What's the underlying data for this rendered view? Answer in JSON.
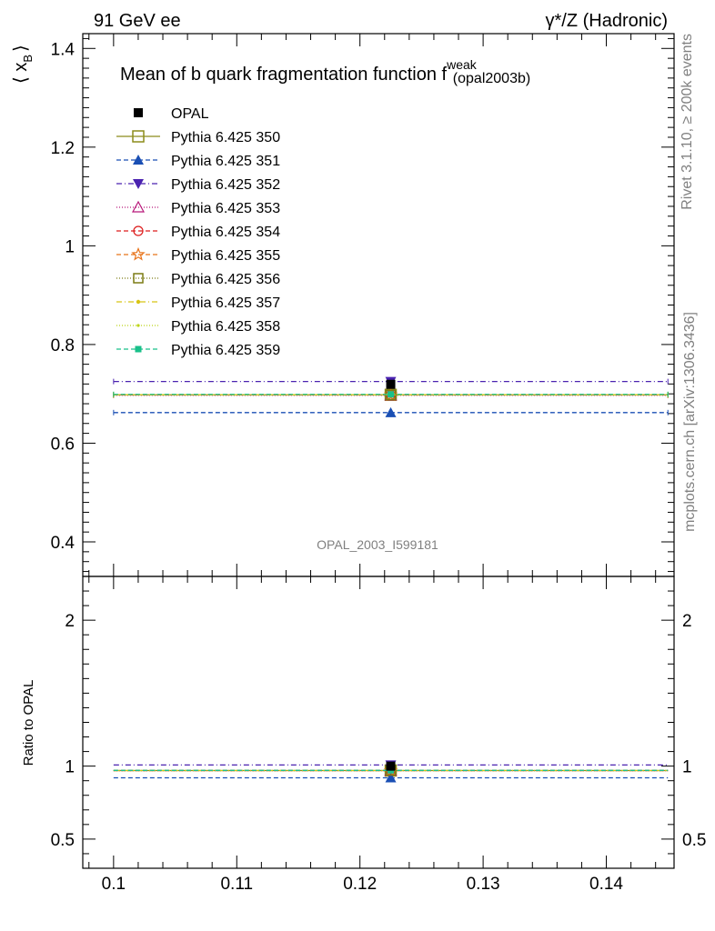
{
  "header": {
    "left": "91 GeV ee",
    "right": "γ*/Z (Hadronic)"
  },
  "side": {
    "rivet": "Rivet 3.1.10, ≥ 200k events",
    "mcplots": "mcplots.cern.ch [arXiv:1306.3436]"
  },
  "chart_data": {
    "type": "line",
    "title": "Mean of b quark fragmentation function f",
    "title_sup": "weak",
    "title_suffix": "(opal2003b)",
    "watermark": "OPAL_2003_I599181",
    "ylabel_main": "⟨ x",
    "ylabel_main_sub": "B",
    "ylabel_main_close": "⟩",
    "ylabel_ratio": "Ratio to OPAL",
    "xlim": [
      0.0975,
      0.1455
    ],
    "ylim_main": [
      0.33,
      1.43
    ],
    "ylim_ratio": [
      0.3,
      2.3
    ],
    "x_ticks": [
      "0.1",
      "0.11",
      "0.12",
      "0.13",
      "0.14"
    ],
    "y_ticks_main": [
      "0.4",
      "0.6",
      "0.8",
      "1",
      "1.2",
      "1.4"
    ],
    "y_ticks_ratio": [
      "0.5",
      "1",
      "2"
    ],
    "x_range": [
      0.1,
      0.145
    ],
    "x_center": 0.1225,
    "series": [
      {
        "name": "OPAL",
        "value": 0.7193,
        "ratio": 1.0,
        "color": "#000000",
        "marker": "square-filled",
        "dash": "none",
        "is_data": true
      },
      {
        "name": "Pythia 6.425 350",
        "value": 0.698,
        "ratio": 0.97,
        "color": "#8c8c1a",
        "marker": "square-open-big",
        "dash": "solid"
      },
      {
        "name": "Pythia 6.425 351",
        "value": 0.662,
        "ratio": 0.92,
        "color": "#1a4fb4",
        "marker": "triangle-filled",
        "dash": "5,3"
      },
      {
        "name": "Pythia 6.425 352",
        "value": 0.725,
        "ratio": 1.008,
        "color": "#4a22b0",
        "marker": "triangle-down-filled",
        "dash": "6,3,1,3"
      },
      {
        "name": "Pythia 6.425 353",
        "value": 0.697,
        "ratio": 0.969,
        "color": "#b8187a",
        "marker": "triangle-open",
        "dash": "1,2"
      },
      {
        "name": "Pythia 6.425 354",
        "value": 0.698,
        "ratio": 0.97,
        "color": "#dd1c1c",
        "marker": "circle-open",
        "dash": "5,3"
      },
      {
        "name": "Pythia 6.425 355",
        "value": 0.698,
        "ratio": 0.97,
        "color": "#e8731a",
        "marker": "star-open",
        "dash": "5,3"
      },
      {
        "name": "Pythia 6.425 356",
        "value": 0.698,
        "ratio": 0.97,
        "color": "#7c7c14",
        "marker": "square-open",
        "dash": "1,2"
      },
      {
        "name": "Pythia 6.425 357",
        "value": 0.698,
        "ratio": 0.97,
        "color": "#d8c414",
        "marker": "dot",
        "dash": "6,3,1,3"
      },
      {
        "name": "Pythia 6.425 358",
        "value": 0.698,
        "ratio": 0.97,
        "color": "#bcd414",
        "marker": "dot-small",
        "dash": "1,2"
      },
      {
        "name": "Pythia 6.425 359",
        "value": 0.699,
        "ratio": 0.971,
        "color": "#19c08a",
        "marker": "square-small-filled",
        "dash": "5,3"
      }
    ]
  }
}
